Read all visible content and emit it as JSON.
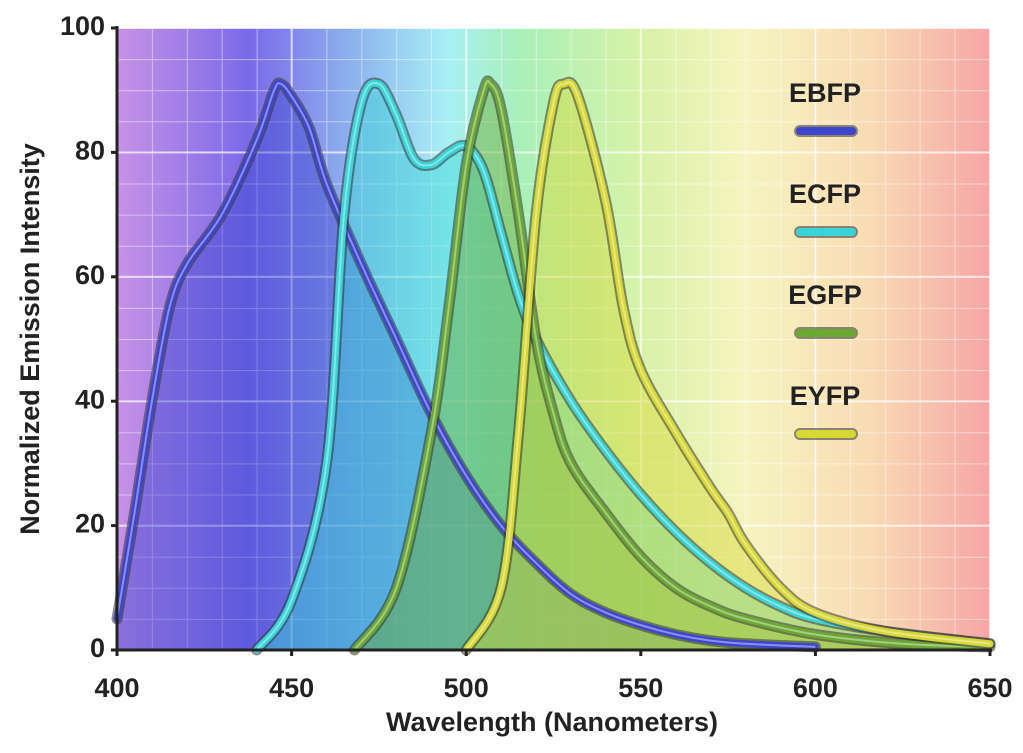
{
  "chart_data": {
    "type": "line",
    "xlabel": "Wavelength (Nanometers)",
    "ylabel": "Normalized Emission Intensity",
    "xlim": [
      400,
      650
    ],
    "xticks": [
      400,
      450,
      500,
      550,
      600,
      650
    ],
    "ylim": [
      0,
      100
    ],
    "yticks": [
      0,
      20,
      40,
      60,
      80,
      100
    ],
    "grid": true,
    "legend": "right",
    "series": [
      {
        "name": "EBFP",
        "color": "#3e46d0",
        "x": [
          400,
          405,
          410,
          415,
          420,
          430,
          440,
          445,
          447,
          450,
          455,
          460,
          470,
          480,
          490,
          500,
          510,
          520,
          530,
          540,
          550,
          560,
          570,
          580,
          600
        ],
        "values": [
          5,
          22,
          40,
          55,
          62,
          70,
          82,
          90,
          91,
          89,
          84,
          75,
          62,
          50,
          38,
          28,
          20,
          14,
          9,
          6,
          4,
          2.5,
          1.5,
          1,
          0.5
        ]
      },
      {
        "name": "ECFP",
        "color": "#38d4d8",
        "x": [
          440,
          450,
          460,
          465,
          470,
          475,
          480,
          485,
          490,
          495,
          500,
          505,
          510,
          515,
          520,
          530,
          540,
          550,
          560,
          570,
          580,
          590,
          600,
          620,
          650
        ],
        "values": [
          0,
          8,
          30,
          70,
          88,
          91,
          86,
          79,
          78,
          80,
          81,
          77,
          67,
          57,
          50,
          40,
          32,
          25,
          19,
          14,
          10,
          7,
          5,
          3,
          1
        ]
      },
      {
        "name": "EGFP",
        "color": "#6aa832",
        "x": [
          468,
          480,
          490,
          495,
          500,
          505,
          507,
          510,
          515,
          520,
          525,
          530,
          540,
          550,
          560,
          570,
          580,
          600,
          625,
          650
        ],
        "values": [
          0,
          10,
          35,
          55,
          78,
          90,
          91,
          87,
          70,
          50,
          38,
          30,
          22,
          15,
          10,
          7,
          5,
          2.5,
          1,
          0.5
        ]
      },
      {
        "name": "EYFP",
        "color": "#d8d834",
        "x": [
          500,
          510,
          515,
          520,
          525,
          528,
          532,
          540,
          545,
          550,
          560,
          570,
          575,
          580,
          590,
          600,
          620,
          650
        ],
        "values": [
          0,
          10,
          35,
          70,
          88,
          91,
          89,
          72,
          55,
          45,
          35,
          26,
          22,
          17,
          10,
          6,
          3,
          1
        ]
      }
    ]
  }
}
